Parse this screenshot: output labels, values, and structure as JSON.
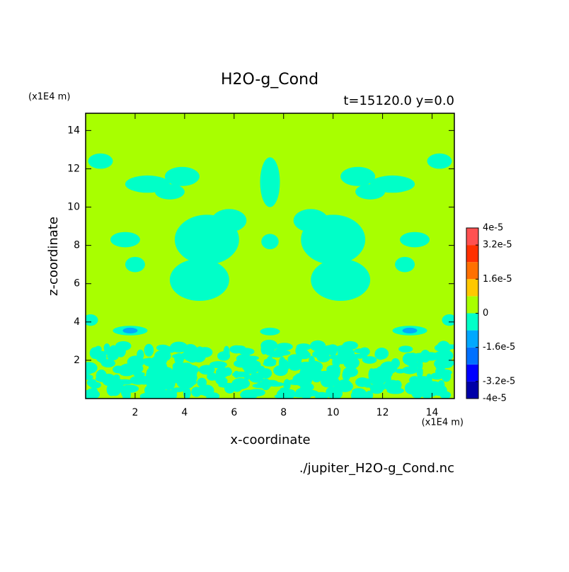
{
  "chart_data": {
    "type": "contour",
    "title": "H2O-g_Cond",
    "subtitle": "t=15120.0 y=0.0",
    "x_label": "x-coordinate",
    "y_label": "z-coordinate",
    "x_unit": "(x1E4 m)",
    "y_unit": "(x1E4 m)",
    "source": "./jupiter_H2O-g_Cond.nc",
    "xlim": [
      0,
      14.9
    ],
    "ylim": [
      0,
      14.9
    ],
    "xticks": [
      2,
      4,
      6,
      8,
      10,
      12,
      14
    ],
    "yticks": [
      2,
      4,
      6,
      8,
      10,
      12,
      14
    ],
    "levels": [
      -4e-05,
      -3.2e-05,
      -2.4e-05,
      -1.6e-05,
      -8e-06,
      0,
      8e-06,
      1.6e-05,
      2.4e-05,
      3.2e-05,
      4e-05
    ],
    "colors": [
      "#0000a8",
      "#0000ff",
      "#0070ff",
      "#00a8ff",
      "#00ffc8",
      "#a8ff00",
      "#ffc800",
      "#ff7000",
      "#ff3000",
      "#ff5050"
    ],
    "colorbar_ticks": [
      {
        "value": 4e-05,
        "label": "4e-5"
      },
      {
        "value": 3.2e-05,
        "label": "3.2e-5"
      },
      {
        "value": 1.6e-05,
        "label": "1.6e-5"
      },
      0,
      {
        "value": -1.6e-05,
        "label": "-1.6e-5"
      },
      {
        "value": -3.2e-05,
        "label": "-3.2e-5"
      },
      {
        "value": -4e-05,
        "label": "-4e-5"
      }
    ]
  }
}
